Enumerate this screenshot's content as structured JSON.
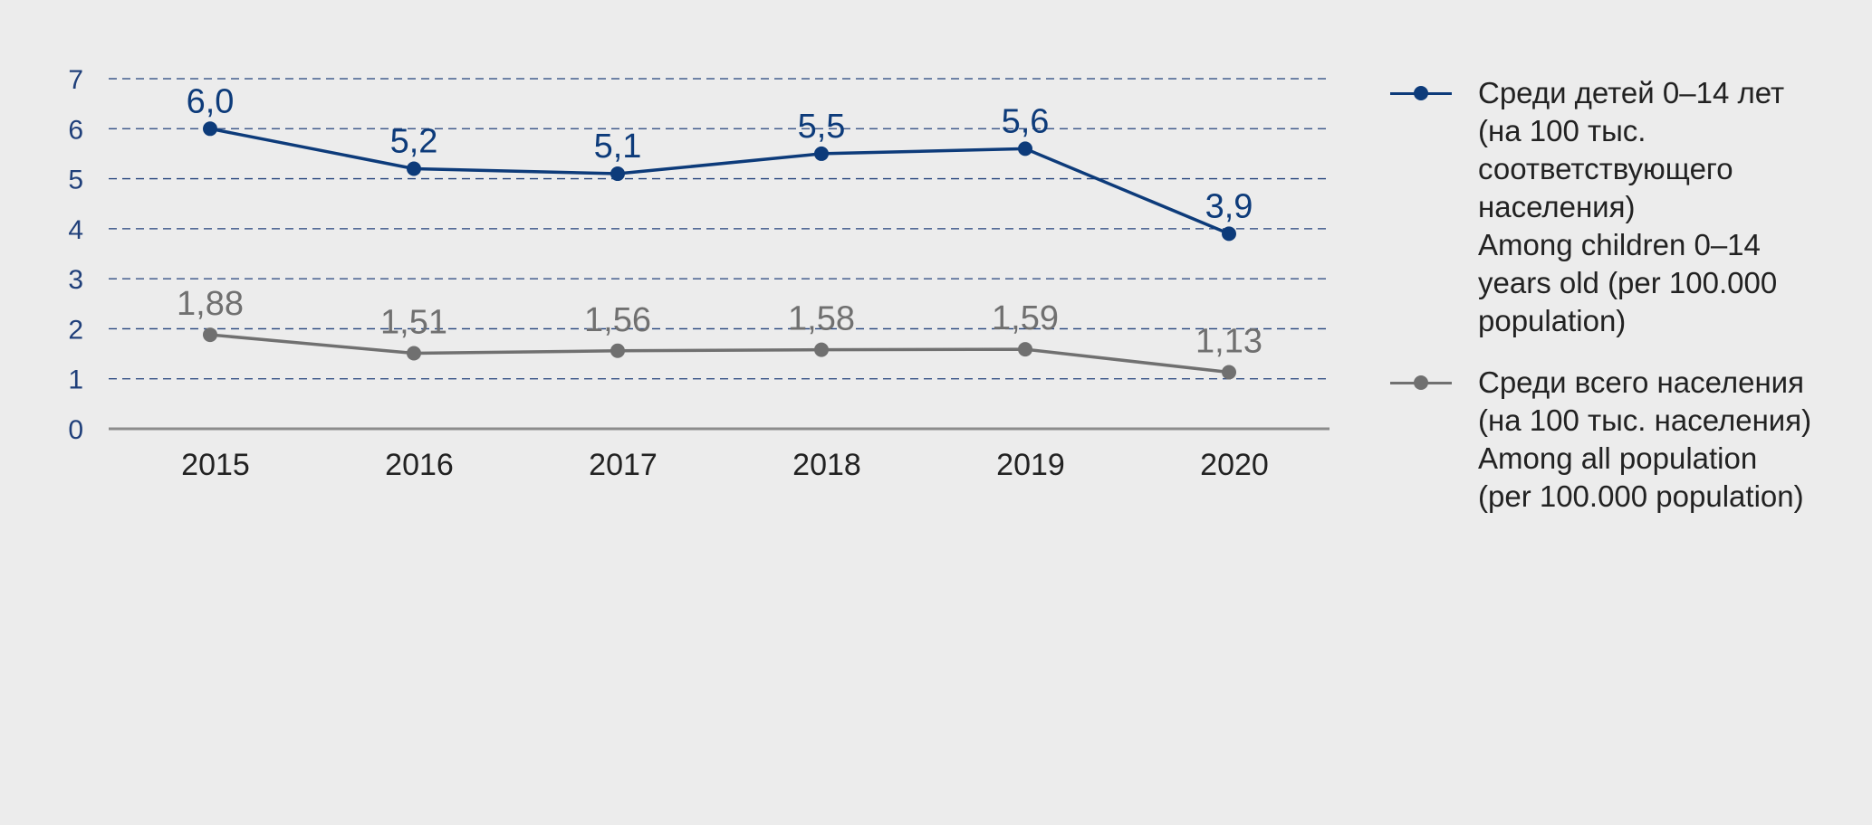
{
  "chart_data": {
    "type": "line",
    "title": "",
    "xlabel": "",
    "ylabel": "",
    "categories": [
      "2015",
      "2016",
      "2017",
      "2018",
      "2019",
      "2020"
    ],
    "ylim": [
      0,
      7
    ],
    "yticks": [
      0,
      1,
      2,
      3,
      4,
      5,
      6,
      7
    ],
    "grid": "dashed horizontal",
    "legend_position": "right",
    "series": [
      {
        "name": "Среди детей 0–14 лет (на 100 тыс. соответствующего населения) Among children 0–14 years old (per 100.000 population)",
        "legend_text": "Среди детей 0–14 лет\n(на 100 тыс.\nсоответствующего\nнаселения)\nAmong children 0–14\nyears old (per 100.000\npopulation)",
        "color": "#0d3b7a",
        "values": [
          6.0,
          5.2,
          5.1,
          5.5,
          5.6,
          3.9
        ],
        "labels": [
          "6,0",
          "5,2",
          "5,1",
          "5,5",
          "5,6",
          "3,9"
        ]
      },
      {
        "name": "Среди всего населения (на 100 тыс. населения) Among all population (per 100.000 population)",
        "legend_text": "Среди всего населения\n(на 100 тыс. населения)\nAmong all population\n(per 100.000 population)",
        "color": "#707070",
        "values": [
          1.88,
          1.51,
          1.56,
          1.58,
          1.59,
          1.13
        ],
        "labels": [
          "1,88",
          "1,51",
          "1,56",
          "1,58",
          "1,59",
          "1,13"
        ]
      }
    ]
  }
}
